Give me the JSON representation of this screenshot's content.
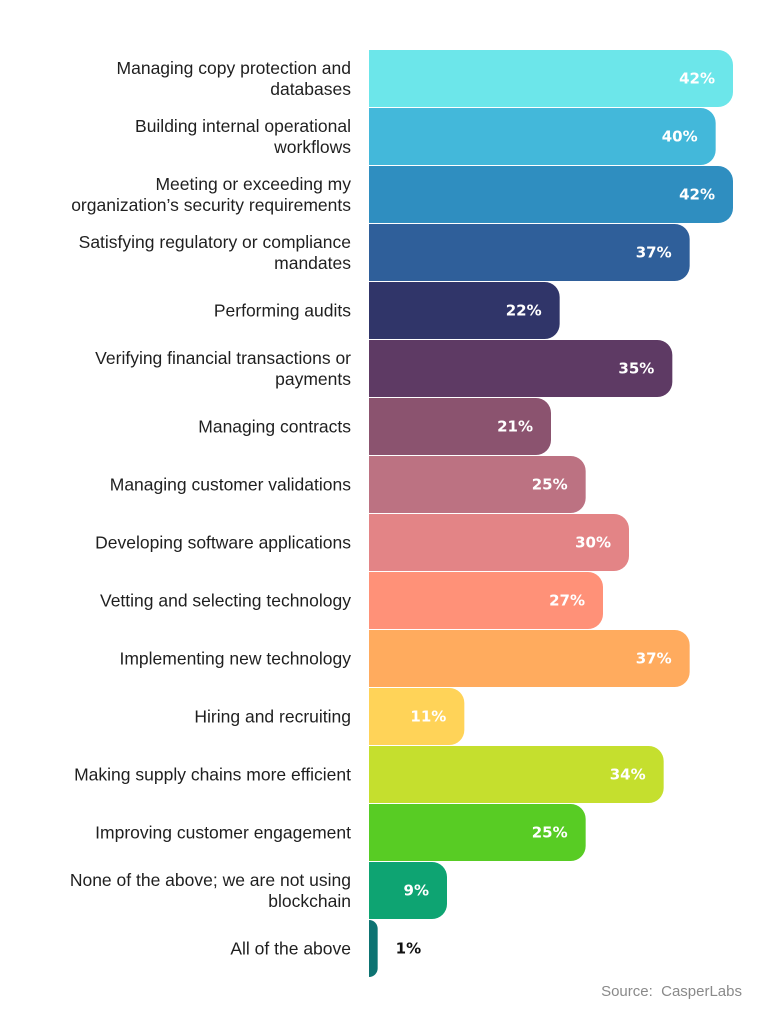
{
  "chart_data": {
    "type": "bar",
    "orientation": "horizontal",
    "categories": [
      [
        "Managing copy protection and",
        "databases"
      ],
      [
        "Building internal operational",
        "workflows"
      ],
      [
        "Meeting or exceeding my",
        "organization’s security requirements"
      ],
      [
        "Satisfying regulatory or compliance",
        "mandates"
      ],
      [
        "Performing audits"
      ],
      [
        "Verifying financial transactions or",
        "payments"
      ],
      [
        "Managing contracts"
      ],
      [
        "Managing customer validations"
      ],
      [
        "Developing software applications"
      ],
      [
        "Vetting and selecting technology"
      ],
      [
        "Implementing new technology"
      ],
      [
        "Hiring and recruiting"
      ],
      [
        "Making supply chains more efficient"
      ],
      [
        "Improving customer engagement"
      ],
      [
        "None of the above; we are not using",
        "blockchain"
      ],
      [
        "All of the above"
      ]
    ],
    "values": [
      42,
      40,
      42,
      37,
      22,
      35,
      21,
      25,
      30,
      27,
      37,
      11,
      34,
      25,
      9,
      1
    ],
    "value_labels": [
      "42%",
      "40%",
      "42%",
      "37%",
      "22%",
      "35%",
      "21%",
      "25%",
      "30%",
      "27%",
      "37%",
      "11%",
      "34%",
      "25%",
      "9%",
      "1%"
    ],
    "colors": [
      "#6ce6ea",
      "#43b8da",
      "#2f8ec0",
      "#2f5f9a",
      "#303569",
      "#5e3a64",
      "#8b536f",
      "#bc7282",
      "#e38486",
      "#ff9178",
      "#ffab5e",
      "#ffd358",
      "#c5df2e",
      "#58cc24",
      "#0ea472",
      "#0d7372"
    ],
    "value_label_colors": [
      "#ffffff",
      "#ffffff",
      "#ffffff",
      "#ffffff",
      "#ffffff",
      "#ffffff",
      "#ffffff",
      "#ffffff",
      "#ffffff",
      "#ffffff",
      "#ffffff",
      "#ffffff",
      "#ffffff",
      "#ffffff",
      "#ffffff",
      "#111111"
    ],
    "xlim": [
      0,
      42
    ],
    "grid": false,
    "legend": "none"
  },
  "source": "Source:  CasperLabs"
}
